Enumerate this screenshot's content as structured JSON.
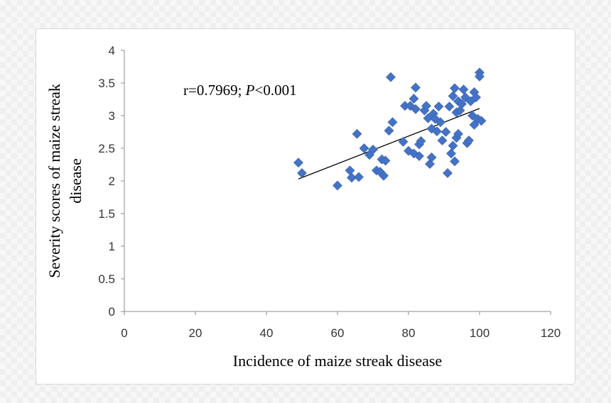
{
  "chart_data": {
    "type": "scatter",
    "xlabel": "Incidence of maize streak disease",
    "ylabel_line1": "Severity scores of maize streak",
    "ylabel_line2": "disease",
    "xlim": [
      0,
      120
    ],
    "ylim": [
      0,
      4
    ],
    "xticks": [
      "0",
      "20",
      "40",
      "60",
      "80",
      "100",
      "120"
    ],
    "yticks": [
      "0",
      "0.5",
      "1",
      "1.5",
      "2",
      "2.5",
      "3",
      "3.5",
      "4"
    ],
    "annotation": {
      "r": "r=0.7969; ",
      "p_symbol": "P",
      "p_value": "<0.001"
    },
    "marker_color": "#4472c4",
    "grid": false,
    "trendline": {
      "x": [
        49,
        100
      ],
      "y": [
        2.03,
        3.11
      ]
    },
    "points": [
      [
        49,
        2.28
      ],
      [
        50,
        2.12
      ],
      [
        60,
        1.93
      ],
      [
        63.5,
        2.16
      ],
      [
        64,
        2.05
      ],
      [
        65.5,
        2.72
      ],
      [
        66,
        2.06
      ],
      [
        67.5,
        2.5
      ],
      [
        69,
        2.4
      ],
      [
        70,
        2.48
      ],
      [
        71,
        2.16
      ],
      [
        72,
        2.14
      ],
      [
        72.5,
        2.33
      ],
      [
        73,
        2.08
      ],
      [
        73.5,
        2.31
      ],
      [
        74.5,
        2.77
      ],
      [
        75,
        3.59
      ],
      [
        75.5,
        2.9
      ],
      [
        78.5,
        2.6
      ],
      [
        79,
        3.15
      ],
      [
        80,
        2.46
      ],
      [
        80.5,
        3.15
      ],
      [
        81.5,
        3.26
      ],
      [
        81.5,
        2.42
      ],
      [
        82,
        3.1
      ],
      [
        82,
        3.43
      ],
      [
        83,
        2.38
      ],
      [
        83,
        2.56
      ],
      [
        83.5,
        2.61
      ],
      [
        84.5,
        3.08
      ],
      [
        85,
        3.15
      ],
      [
        85.5,
        2.96
      ],
      [
        86,
        2.26
      ],
      [
        86.5,
        2.36
      ],
      [
        86.5,
        2.8
      ],
      [
        87,
        3.03
      ],
      [
        87.5,
        2.95
      ],
      [
        88,
        2.76
      ],
      [
        88.5,
        3.14
      ],
      [
        89,
        2.9
      ],
      [
        89.5,
        2.62
      ],
      [
        90.5,
        2.75
      ],
      [
        91,
        2.12
      ],
      [
        91.5,
        3.14
      ],
      [
        92,
        2.42
      ],
      [
        92.5,
        2.54
      ],
      [
        92.5,
        3.3
      ],
      [
        93,
        3.42
      ],
      [
        93,
        2.3
      ],
      [
        93.5,
        2.66
      ],
      [
        93.5,
        3.05
      ],
      [
        94,
        2.72
      ],
      [
        94,
        3.22
      ],
      [
        94.5,
        3.08
      ],
      [
        95,
        3.18
      ],
      [
        95.5,
        3.4
      ],
      [
        96,
        3.28
      ],
      [
        96.5,
        2.58
      ],
      [
        97,
        2.62
      ],
      [
        97.5,
        3.22
      ],
      [
        98,
        3.0
      ],
      [
        98.5,
        3.36
      ],
      [
        98.5,
        2.86
      ],
      [
        99,
        3.28
      ],
      [
        99.5,
        2.95
      ],
      [
        100,
        3.66
      ],
      [
        100,
        3.6
      ],
      [
        100.5,
        2.92
      ]
    ]
  }
}
